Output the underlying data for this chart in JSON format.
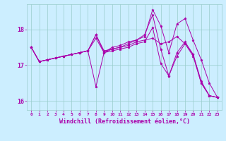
{
  "background_color": "#cceeff",
  "grid_color": "#99cccc",
  "line_color": "#aa00aa",
  "marker": "*",
  "xlabel": "Windchill (Refroidissement éolien,°C)",
  "xlabel_fontsize": 6.0,
  "yticks": [
    16,
    17,
    18
  ],
  "xticks": [
    0,
    1,
    2,
    3,
    4,
    5,
    6,
    7,
    8,
    9,
    10,
    11,
    12,
    13,
    14,
    15,
    16,
    17,
    18,
    19,
    20,
    21,
    22,
    23
  ],
  "xlim": [
    -0.5,
    23.5
  ],
  "ylim": [
    15.75,
    18.7
  ],
  "curves": [
    [
      17.5,
      17.1,
      17.15,
      17.2,
      17.25,
      17.3,
      17.35,
      17.4,
      17.85,
      17.4,
      17.45,
      17.5,
      17.55,
      17.65,
      17.7,
      17.75,
      17.6,
      17.65,
      17.8,
      17.6,
      17.3,
      16.55,
      16.15,
      16.1
    ],
    [
      17.5,
      17.1,
      17.15,
      17.2,
      17.25,
      17.3,
      17.35,
      17.4,
      17.85,
      17.35,
      17.45,
      17.5,
      17.6,
      17.7,
      17.8,
      18.55,
      18.1,
      17.35,
      18.15,
      18.3,
      17.7,
      17.15,
      16.5,
      16.1
    ],
    [
      17.5,
      17.1,
      17.15,
      17.2,
      17.25,
      17.3,
      17.35,
      17.4,
      17.75,
      17.35,
      17.5,
      17.55,
      17.65,
      17.7,
      17.85,
      18.4,
      17.45,
      16.7,
      17.35,
      17.65,
      17.3,
      16.5,
      16.15,
      16.1
    ],
    [
      17.5,
      17.1,
      17.15,
      17.2,
      17.25,
      17.3,
      17.35,
      17.4,
      16.4,
      17.35,
      17.4,
      17.45,
      17.5,
      17.6,
      17.65,
      18.05,
      17.05,
      16.7,
      17.25,
      17.6,
      17.25,
      16.5,
      16.15,
      16.1
    ]
  ]
}
